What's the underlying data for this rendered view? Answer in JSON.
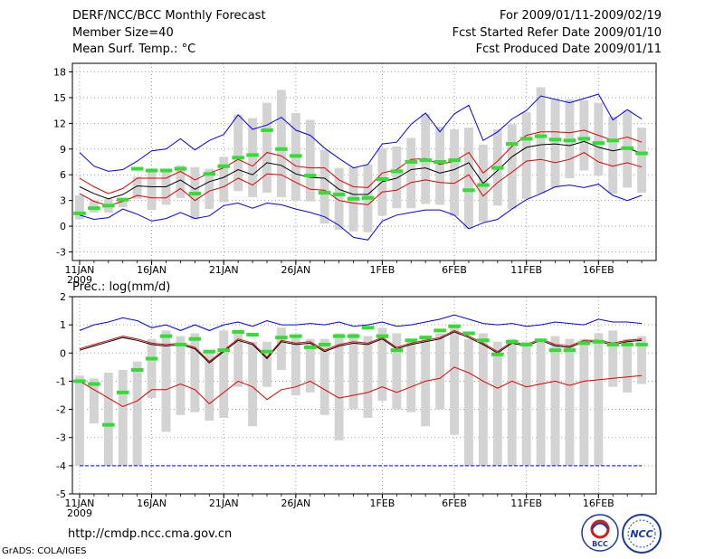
{
  "header": {
    "title": "DERF/NCC/BCC Monthly Forecast",
    "member": "Member Size=40",
    "variable": "Mean Surf. Temp.: °C",
    "period": "For 2009/01/11-2009/02/19",
    "started": "Fcst Started Refer Date 2009/01/10",
    "produced": "Fcst Produced Date 2009/01/11"
  },
  "footer": {
    "url": "http://cmdp.ncc.cma.gov.cn",
    "grads": "GrADS: COLA/IGES",
    "logo_left": "BCC",
    "logo_right": "NCC"
  },
  "colors": {
    "max": "#0000ff",
    "spread": "#e00000",
    "mean": "#000000",
    "obs": "#33dd33",
    "box": "#d3d3d3"
  },
  "chart_data": [
    {
      "type": "box",
      "title": "Mean Surf. Temp.: °C",
      "xlabel": "",
      "ylabel": "",
      "days": 40,
      "ylim": [
        -4,
        19
      ],
      "yticks": [
        -3,
        0,
        3,
        6,
        9,
        12,
        15,
        18
      ],
      "xticks": [
        {
          "day": 1,
          "label": "11JAN",
          "sub": "2009"
        },
        {
          "day": 6,
          "label": "16JAN"
        },
        {
          "day": 11,
          "label": "21JAN"
        },
        {
          "day": 16,
          "label": "26JAN"
        },
        {
          "day": 22,
          "label": "1FEB"
        },
        {
          "day": 27,
          "label": "6FEB"
        },
        {
          "day": 32,
          "label": "11FEB"
        },
        {
          "day": 37,
          "label": "16FEB"
        }
      ],
      "box_low": [
        0.8,
        1.6,
        1.6,
        2.2,
        3.2,
        1.9,
        2.5,
        3.3,
        0.8,
        2.0,
        2.8,
        4.1,
        3.4,
        3.9,
        3.4,
        3.0,
        2.9,
        0.3,
        -0.4,
        -0.6,
        -0.7,
        1.2,
        2.1,
        2.1,
        2.6,
        2.5,
        1.2,
        -0.3,
        0.5,
        2.4,
        2.0,
        3.2,
        3.8,
        4.5,
        5.6,
        6.5,
        5.9,
        3.8,
        4.5,
        3.9
      ],
      "box_high": [
        3.6,
        3.0,
        3.2,
        3.2,
        5.8,
        6.6,
        6.6,
        7.1,
        6.9,
        6.7,
        8.1,
        13.0,
        12.6,
        14.4,
        15.9,
        13.2,
        12.4,
        8.9,
        6.8,
        6.9,
        7.2,
        9.1,
        9.3,
        10.3,
        13.1,
        11.6,
        11.3,
        11.5,
        9.5,
        11.3,
        11.9,
        13.3,
        16.2,
        14.9,
        14.8,
        14.7,
        14.4,
        12.8,
        13.5,
        11.5
      ],
      "obs": [
        1.5,
        2.1,
        2.4,
        3.1,
        6.7,
        6.5,
        6.5,
        6.7,
        3.8,
        6.1,
        7.0,
        8.0,
        8.3,
        11.2,
        9.0,
        8.2,
        5.9,
        3.9,
        3.7,
        3.2,
        3.3,
        5.5,
        6.4,
        7.5,
        7.7,
        7.5,
        7.7,
        4.2,
        4.8,
        6.8,
        9.6,
        10.2,
        10.5,
        10.1,
        10.0,
        10.2,
        9.7,
        10.0,
        9.1,
        8.5
      ],
      "series": [
        {
          "name": "max",
          "values": [
            8.6,
            7.0,
            6.4,
            6.6,
            7.6,
            8.8,
            9.0,
            10.2,
            8.9,
            10.0,
            10.7,
            13.0,
            11.3,
            11.8,
            12.7,
            11.2,
            10.6,
            9.1,
            7.9,
            6.8,
            7.2,
            9.6,
            9.8,
            11.9,
            13.2,
            11.0,
            13.1,
            14.1,
            10.0,
            11.0,
            12.5,
            13.5,
            15.2,
            14.8,
            14.4,
            14.9,
            15.4,
            12.4,
            13.6,
            12.5
          ]
        },
        {
          "name": "upper",
          "values": [
            5.6,
            4.6,
            3.8,
            4.4,
            5.6,
            5.6,
            5.6,
            6.4,
            5.4,
            6.2,
            6.8,
            7.8,
            7.0,
            8.6,
            8.2,
            7.0,
            6.8,
            6.8,
            5.4,
            4.6,
            4.5,
            6.2,
            6.6,
            7.8,
            7.9,
            7.2,
            7.6,
            8.6,
            6.2,
            7.6,
            9.3,
            10.6,
            11.0,
            11.0,
            10.9,
            11.2,
            10.6,
            10.0,
            10.4,
            9.8
          ]
        },
        {
          "name": "mean",
          "values": [
            4.6,
            3.8,
            3.2,
            3.7,
            4.7,
            4.6,
            4.6,
            5.4,
            4.3,
            5.2,
            5.7,
            6.6,
            6.0,
            7.4,
            7.1,
            6.1,
            5.7,
            5.6,
            4.3,
            3.7,
            3.7,
            5.2,
            5.6,
            6.6,
            6.8,
            6.2,
            6.6,
            7.4,
            5.0,
            6.5,
            8.1,
            9.2,
            9.5,
            9.6,
            9.4,
            9.9,
            9.2,
            8.8,
            9.1,
            8.5
          ]
        },
        {
          "name": "lower",
          "values": [
            3.8,
            2.9,
            2.4,
            2.9,
            3.6,
            3.3,
            3.3,
            4.4,
            3.0,
            4.1,
            4.6,
            5.6,
            4.8,
            6.1,
            6.0,
            5.1,
            4.3,
            4.2,
            3.0,
            2.7,
            2.5,
            4.0,
            4.2,
            5.1,
            5.4,
            5.1,
            5.0,
            6.0,
            3.5,
            5.1,
            6.3,
            7.6,
            7.8,
            7.4,
            7.8,
            8.6,
            7.5,
            7.0,
            7.4,
            6.9
          ]
        },
        {
          "name": "min",
          "values": [
            1.3,
            0.8,
            1.0,
            2.0,
            1.4,
            0.6,
            0.9,
            1.6,
            0.9,
            1.2,
            2.4,
            2.7,
            2.1,
            2.7,
            2.5,
            2.0,
            1.6,
            1.1,
            0.1,
            -1.3,
            -1.6,
            0.6,
            1.3,
            1.6,
            1.9,
            1.9,
            1.3,
            -0.3,
            0.4,
            0.8,
            2.0,
            3.1,
            3.8,
            4.6,
            4.8,
            4.5,
            4.9,
            3.6,
            3.0,
            3.6
          ]
        }
      ]
    },
    {
      "type": "box",
      "title": "Prec.: log(mm/d)",
      "xlabel": "",
      "ylabel": "",
      "days": 40,
      "ylim": [
        -5,
        2
      ],
      "yticks": [
        -5,
        -4,
        -3,
        -2,
        -1,
        0,
        1,
        2
      ],
      "xticks": [
        {
          "day": 1,
          "label": "11JAN",
          "sub": "2009"
        },
        {
          "day": 6,
          "label": "16JAN"
        },
        {
          "day": 11,
          "label": "21JAN"
        },
        {
          "day": 16,
          "label": "26JAN"
        },
        {
          "day": 22,
          "label": "1FEB"
        },
        {
          "day": 27,
          "label": "6FEB"
        },
        {
          "day": 32,
          "label": "11FEB"
        },
        {
          "day": 37,
          "label": "16FEB"
        }
      ],
      "box_low": [
        -4.0,
        -2.5,
        -4.0,
        -4.0,
        -4.0,
        -1.6,
        -2.8,
        -2.2,
        -2.1,
        -2.4,
        -2.3,
        -1.2,
        -2.6,
        -1.2,
        -0.6,
        -1.5,
        -1.4,
        -2.2,
        -3.1,
        -2.0,
        -2.3,
        -1.7,
        -2.0,
        -2.1,
        -2.6,
        -2.0,
        -2.9,
        -4.0,
        -4.0,
        -4.0,
        -4.0,
        -4.0,
        -4.0,
        -4.0,
        -4.0,
        -4.0,
        -4.0,
        -1.2,
        -1.4,
        -1.1
      ],
      "box_high": [
        -0.8,
        -0.9,
        -0.7,
        -0.6,
        -0.3,
        0.5,
        0.8,
        0.6,
        0.7,
        0.1,
        0.8,
        0.8,
        0.4,
        0.4,
        0.9,
        0.6,
        0.5,
        0.5,
        0.7,
        0.7,
        0.6,
        0.9,
        0.7,
        0.5,
        0.6,
        0.7,
        0.9,
        0.5,
        0.7,
        0.4,
        0.5,
        0.4,
        0.5,
        0.6,
        0.5,
        0.5,
        0.7,
        0.8,
        0.5,
        0.6
      ],
      "obs": [
        -1.0,
        -1.1,
        -2.55,
        -1.4,
        -0.6,
        -0.2,
        0.6,
        0.3,
        0.5,
        0.05,
        0.1,
        0.75,
        0.65,
        0.05,
        0.55,
        0.6,
        0.2,
        0.3,
        0.6,
        0.6,
        0.9,
        0.6,
        0.1,
        0.45,
        0.55,
        0.8,
        0.95,
        0.7,
        0.45,
        -0.05,
        0.4,
        0.3,
        0.45,
        0.1,
        0.1,
        0.35,
        0.4,
        0.3,
        0.3,
        0.3
      ],
      "series": [
        {
          "name": "max",
          "values": [
            0.8,
            1.0,
            1.1,
            1.25,
            1.15,
            0.9,
            1.0,
            0.8,
            1.0,
            0.8,
            1.0,
            1.1,
            0.95,
            1.15,
            1.0,
            1.0,
            1.05,
            1.0,
            1.1,
            0.95,
            1.0,
            1.1,
            0.95,
            1.0,
            1.1,
            1.2,
            1.35,
            1.2,
            1.05,
            1.0,
            1.05,
            0.95,
            1.0,
            1.1,
            1.05,
            1.0,
            1.2,
            1.1,
            1.1,
            1.05
          ]
        },
        {
          "name": "upper",
          "values": [
            0.15,
            0.3,
            0.45,
            0.6,
            0.5,
            0.35,
            0.3,
            0.35,
            0.2,
            -0.3,
            0.1,
            0.5,
            0.35,
            -0.15,
            0.45,
            0.35,
            0.4,
            0.1,
            0.3,
            0.4,
            0.35,
            0.55,
            0.2,
            0.35,
            0.45,
            0.55,
            0.8,
            0.6,
            0.35,
            0.05,
            0.4,
            0.3,
            0.5,
            0.3,
            0.25,
            0.45,
            0.45,
            0.35,
            0.45,
            0.5
          ]
        },
        {
          "name": "mean",
          "values": [
            0.1,
            0.25,
            0.4,
            0.55,
            0.45,
            0.3,
            0.25,
            0.3,
            0.15,
            -0.35,
            0.05,
            0.45,
            0.3,
            -0.2,
            0.4,
            0.3,
            0.35,
            0.05,
            0.25,
            0.35,
            0.3,
            0.5,
            0.15,
            0.3,
            0.4,
            0.5,
            0.75,
            0.55,
            0.3,
            0.0,
            0.35,
            0.25,
            0.45,
            0.25,
            0.2,
            0.4,
            0.4,
            0.3,
            0.4,
            0.45
          ]
        },
        {
          "name": "lower",
          "values": [
            -1.0,
            -1.3,
            -1.6,
            -1.9,
            -1.7,
            -1.3,
            -1.3,
            -1.1,
            -1.3,
            -1.8,
            -1.4,
            -1.0,
            -1.2,
            -1.65,
            -1.3,
            -1.2,
            -1.0,
            -1.3,
            -1.6,
            -1.5,
            -1.4,
            -1.2,
            -1.4,
            -1.2,
            -1.0,
            -0.9,
            -0.5,
            -0.7,
            -1.0,
            -1.25,
            -1.0,
            -1.2,
            -1.1,
            -1.0,
            -1.15,
            -1.0,
            -0.95,
            -0.9,
            -0.85,
            -0.8
          ]
        },
        {
          "name": "min",
          "values": [
            -4.0,
            -4.0,
            -4.0,
            -4.0,
            -4.0,
            -4.0,
            -4.0,
            -4.0,
            -4.0,
            -4.0,
            -4.0,
            -4.0,
            -4.0,
            -4.0,
            -4.0,
            -4.0,
            -4.0,
            -4.0,
            -4.0,
            -4.0,
            -4.0,
            -4.0,
            -4.0,
            -4.0,
            -4.0,
            -4.0,
            -4.0,
            -4.0,
            -4.0,
            -4.0,
            -4.0,
            -4.0,
            -4.0,
            -4.0,
            -4.0,
            -4.0,
            -4.0,
            -4.0,
            -4.0,
            -4.0
          ]
        }
      ]
    }
  ]
}
